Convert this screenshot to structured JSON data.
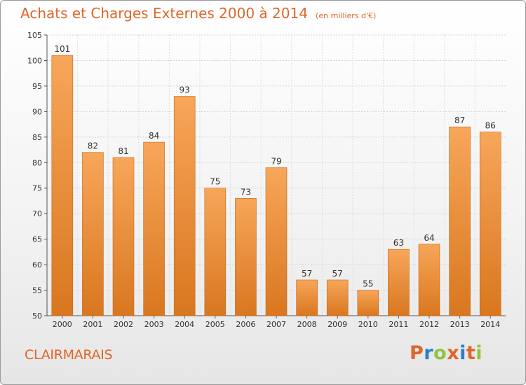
{
  "header": {
    "title": "Achats et Charges Externes 2000 à 2014",
    "unit": "(en milliers d'€)"
  },
  "location": "CLAIRMARAIS",
  "logo": {
    "text": "Proxiti",
    "letter_colors": [
      "#e0652a",
      "#2a7fc9",
      "#8dc63f",
      "#e0652a",
      "#2a7fc9",
      "#e0652a",
      "#8dc63f"
    ]
  },
  "colors": {
    "bar_light": "#f7a65a",
    "bar_dark": "#d9771f",
    "accent": "#e0652a"
  },
  "chart_data": {
    "type": "bar",
    "title": "Achats et Charges Externes 2000 à 2014",
    "subtitle": "(en milliers d'€)",
    "categories": [
      "2000",
      "2001",
      "2002",
      "2003",
      "2004",
      "2005",
      "2006",
      "2007",
      "2008",
      "2009",
      "2010",
      "2011",
      "2012",
      "2013",
      "2014"
    ],
    "values": [
      101,
      82,
      81,
      84,
      93,
      75,
      73,
      79,
      57,
      57,
      55,
      63,
      64,
      87,
      86
    ],
    "ylim": [
      50,
      105
    ],
    "yticks": [
      50,
      55,
      60,
      65,
      70,
      75,
      80,
      85,
      90,
      95,
      100,
      105
    ],
    "grid": true,
    "data_labels": true
  }
}
